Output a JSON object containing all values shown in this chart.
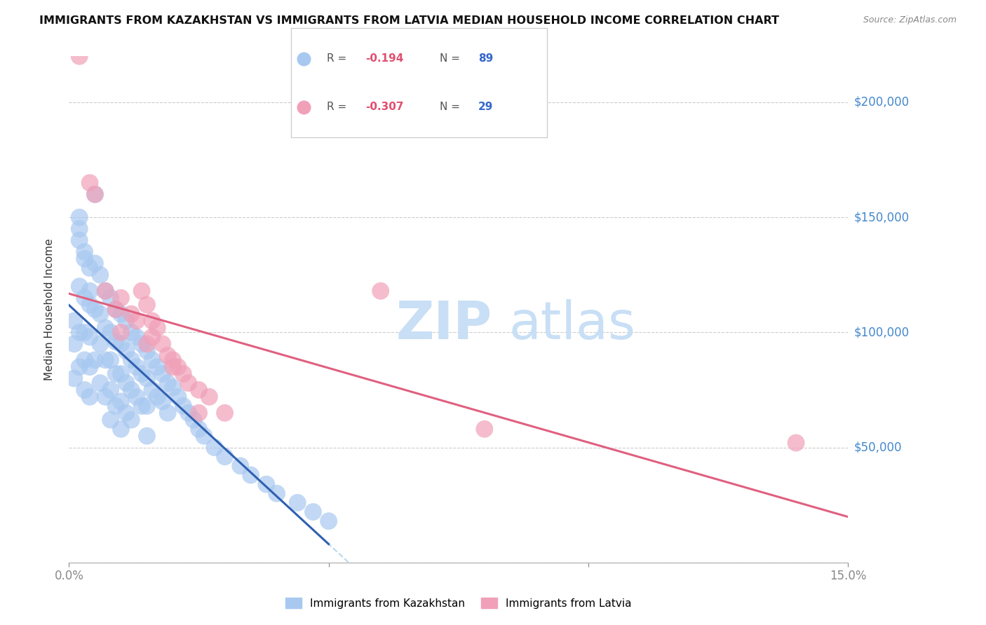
{
  "title": "IMMIGRANTS FROM KAZAKHSTAN VS IMMIGRANTS FROM LATVIA MEDIAN HOUSEHOLD INCOME CORRELATION CHART",
  "source": "Source: ZipAtlas.com",
  "ylabel": "Median Household Income",
  "xmin": 0.0,
  "xmax": 0.15,
  "ymin": 0,
  "ymax": 220000,
  "yticks": [
    0,
    50000,
    100000,
    150000,
    200000
  ],
  "ytick_labels": [
    "",
    "$50,000",
    "$100,000",
    "$150,000",
    "$200,000"
  ],
  "legend_r_kaz": "-0.194",
  "legend_n_kaz": "89",
  "legend_r_lat": "-0.307",
  "legend_n_lat": "29",
  "color_kaz": "#a8c8f0",
  "color_lat": "#f0a0b8",
  "color_kaz_line": "#3060b0",
  "color_lat_line": "#e06080",
  "color_dashed": "#b8d8f0",
  "watermark_zip": "ZIP",
  "watermark_atlas": "atlas",
  "watermark_color": "#c8dff5",
  "kaz_x": [
    0.001,
    0.001,
    0.001,
    0.002,
    0.002,
    0.002,
    0.002,
    0.002,
    0.003,
    0.003,
    0.003,
    0.003,
    0.003,
    0.004,
    0.004,
    0.004,
    0.004,
    0.004,
    0.005,
    0.005,
    0.005,
    0.005,
    0.006,
    0.006,
    0.006,
    0.006,
    0.007,
    0.007,
    0.007,
    0.007,
    0.008,
    0.008,
    0.008,
    0.008,
    0.008,
    0.009,
    0.009,
    0.009,
    0.009,
    0.01,
    0.01,
    0.01,
    0.01,
    0.01,
    0.011,
    0.011,
    0.011,
    0.011,
    0.012,
    0.012,
    0.012,
    0.012,
    0.013,
    0.013,
    0.013,
    0.014,
    0.014,
    0.014,
    0.015,
    0.015,
    0.015,
    0.015,
    0.016,
    0.016,
    0.017,
    0.017,
    0.018,
    0.018,
    0.019,
    0.019,
    0.02,
    0.021,
    0.022,
    0.023,
    0.024,
    0.025,
    0.026,
    0.028,
    0.03,
    0.033,
    0.035,
    0.038,
    0.04,
    0.044,
    0.047,
    0.05,
    0.002,
    0.003,
    0.004
  ],
  "kaz_y": [
    105000,
    95000,
    80000,
    150000,
    140000,
    120000,
    100000,
    85000,
    135000,
    115000,
    100000,
    88000,
    75000,
    128000,
    112000,
    98000,
    85000,
    72000,
    160000,
    130000,
    110000,
    88000,
    125000,
    108000,
    95000,
    78000,
    118000,
    102000,
    88000,
    72000,
    115000,
    100000,
    88000,
    75000,
    62000,
    110000,
    96000,
    82000,
    68000,
    108000,
    95000,
    82000,
    70000,
    58000,
    105000,
    92000,
    78000,
    65000,
    100000,
    88000,
    75000,
    62000,
    98000,
    85000,
    72000,
    95000,
    82000,
    68000,
    92000,
    80000,
    68000,
    55000,
    88000,
    75000,
    85000,
    72000,
    82000,
    70000,
    78000,
    65000,
    76000,
    72000,
    68000,
    65000,
    62000,
    58000,
    55000,
    50000,
    46000,
    42000,
    38000,
    34000,
    30000,
    26000,
    22000,
    18000,
    145000,
    132000,
    118000
  ],
  "lat_x": [
    0.002,
    0.004,
    0.005,
    0.007,
    0.009,
    0.01,
    0.012,
    0.013,
    0.014,
    0.015,
    0.016,
    0.016,
    0.017,
    0.018,
    0.019,
    0.02,
    0.021,
    0.022,
    0.023,
    0.025,
    0.027,
    0.03,
    0.06,
    0.08,
    0.14,
    0.01,
    0.015,
    0.02,
    0.025
  ],
  "lat_y": [
    220000,
    165000,
    160000,
    118000,
    110000,
    115000,
    108000,
    105000,
    118000,
    112000,
    105000,
    98000,
    102000,
    95000,
    90000,
    88000,
    85000,
    82000,
    78000,
    75000,
    72000,
    65000,
    118000,
    58000,
    52000,
    100000,
    95000,
    85000,
    65000
  ]
}
